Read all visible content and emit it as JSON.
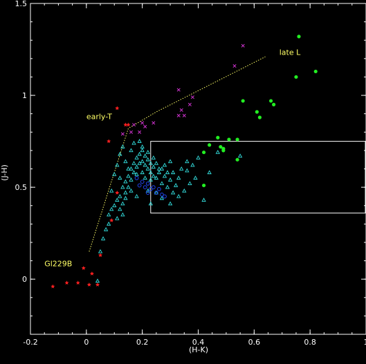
{
  "chart_data": {
    "type": "scatter",
    "title": "",
    "xlabel": "(H-K)",
    "ylabel": "(J-H)",
    "xlim": [
      -0.2,
      1.0
    ],
    "ylim": [
      -0.3,
      1.5
    ],
    "xticks": [
      -0.2,
      0,
      0.2,
      0.4,
      0.6,
      0.8,
      1
    ],
    "xtick_labels": [
      "-0.2",
      "0",
      "0.2",
      "0.4",
      "0.6",
      "0.8",
      "1"
    ],
    "yticks": [
      0,
      0.5,
      1,
      1.5
    ],
    "ytick_labels": [
      "0",
      "0.5",
      "1",
      "1.5"
    ],
    "grid": false,
    "legend": "none",
    "colors": {
      "background": "#000000",
      "axes": "#ffffff",
      "annotation": "#ffff66",
      "track": "#ffff66",
      "box": "#ffffff"
    },
    "annotations": [
      {
        "text": "Gl229B",
        "x": -0.15,
        "y": 0.07
      },
      {
        "text": "early-T",
        "x": 0.0,
        "y": 0.87
      },
      {
        "text": "late L",
        "x": 0.69,
        "y": 1.22
      }
    ],
    "tracks": [
      {
        "name": "",
        "style": "dotted",
        "color": "#ffff66",
        "points": [
          [
            0.01,
            0.15
          ],
          [
            0.15,
            0.82
          ],
          [
            0.25,
            0.91
          ],
          [
            0.64,
            1.21
          ]
        ]
      }
    ],
    "boxes": [
      {
        "color": "#ffffff",
        "x0": 0.23,
        "x1": 1.0,
        "y0": 0.36,
        "y1": 0.75
      }
    ],
    "series": [
      {
        "marker": "star",
        "color": "#ff2020",
        "points": [
          [
            -0.12,
            -0.04
          ],
          [
            -0.07,
            -0.02
          ],
          [
            -0.03,
            -0.02
          ],
          [
            0.01,
            -0.03
          ],
          [
            0.04,
            -0.03
          ],
          [
            0.02,
            0.03
          ],
          [
            -0.01,
            0.06
          ],
          [
            0.05,
            0.13
          ],
          [
            0.09,
            0.32
          ],
          [
            0.11,
            0.47
          ],
          [
            0.08,
            0.75
          ],
          [
            0.14,
            0.84
          ],
          [
            0.11,
            0.93
          ],
          [
            0.15,
            0.84
          ]
        ]
      },
      {
        "marker": "triangle",
        "color": "#33dddd",
        "points": [
          [
            0.04,
            -0.01
          ],
          [
            0.05,
            0.15
          ],
          [
            0.06,
            0.22
          ],
          [
            0.07,
            0.27
          ],
          [
            0.08,
            0.3
          ],
          [
            0.08,
            0.35
          ],
          [
            0.09,
            0.38
          ],
          [
            0.1,
            0.4
          ],
          [
            0.11,
            0.33
          ],
          [
            0.12,
            0.38
          ],
          [
            0.12,
            0.45
          ],
          [
            0.13,
            0.41
          ],
          [
            0.13,
            0.5
          ],
          [
            0.14,
            0.47
          ],
          [
            0.14,
            0.53
          ],
          [
            0.15,
            0.5
          ],
          [
            0.15,
            0.56
          ],
          [
            0.16,
            0.54
          ],
          [
            0.16,
            0.6
          ],
          [
            0.17,
            0.58
          ],
          [
            0.17,
            0.63
          ],
          [
            0.18,
            0.61
          ],
          [
            0.18,
            0.66
          ],
          [
            0.19,
            0.63
          ],
          [
            0.19,
            0.68
          ],
          [
            0.2,
            0.64
          ],
          [
            0.2,
            0.7
          ],
          [
            0.21,
            0.62
          ],
          [
            0.21,
            0.67
          ],
          [
            0.22,
            0.6
          ],
          [
            0.22,
            0.65
          ],
          [
            0.23,
            0.58
          ],
          [
            0.23,
            0.63
          ],
          [
            0.24,
            0.56
          ],
          [
            0.24,
            0.61
          ],
          [
            0.25,
            0.55
          ],
          [
            0.26,
            0.58
          ],
          [
            0.27,
            0.52
          ],
          [
            0.28,
            0.56
          ],
          [
            0.29,
            0.5
          ],
          [
            0.3,
            0.54
          ],
          [
            0.31,
            0.47
          ],
          [
            0.32,
            0.51
          ],
          [
            0.33,
            0.45
          ],
          [
            0.11,
            0.62
          ],
          [
            0.12,
            0.68
          ],
          [
            0.13,
            0.72
          ],
          [
            0.14,
            0.64
          ],
          [
            0.16,
            0.7
          ],
          [
            0.17,
            0.74
          ],
          [
            0.19,
            0.75
          ],
          [
            0.2,
            0.72
          ],
          [
            0.22,
            0.69
          ],
          [
            0.24,
            0.66
          ],
          [
            0.25,
            0.63
          ],
          [
            0.27,
            0.6
          ],
          [
            0.28,
            0.62
          ],
          [
            0.3,
            0.64
          ],
          [
            0.31,
            0.58
          ],
          [
            0.33,
            0.55
          ],
          [
            0.36,
            0.59
          ],
          [
            0.38,
            0.62
          ],
          [
            0.4,
            0.66
          ],
          [
            0.42,
            0.43
          ],
          [
            0.44,
            0.58
          ],
          [
            0.47,
            0.69
          ],
          [
            0.55,
            0.67
          ],
          [
            0.1,
            0.57
          ],
          [
            0.12,
            0.55
          ],
          [
            0.15,
            0.6
          ],
          [
            0.18,
            0.57
          ],
          [
            0.2,
            0.58
          ],
          [
            0.21,
            0.55
          ],
          [
            0.23,
            0.54
          ],
          [
            0.26,
            0.6
          ],
          [
            0.29,
            0.58
          ],
          [
            0.35,
            0.48
          ],
          [
            0.37,
            0.52
          ],
          [
            0.09,
            0.48
          ],
          [
            0.11,
            0.43
          ],
          [
            0.13,
            0.35
          ],
          [
            0.14,
            0.44
          ],
          [
            0.16,
            0.48
          ],
          [
            0.18,
            0.45
          ],
          [
            0.22,
            0.48
          ],
          [
            0.25,
            0.47
          ],
          [
            0.27,
            0.44
          ],
          [
            0.3,
            0.41
          ],
          [
            0.23,
            0.41
          ],
          [
            0.34,
            0.6
          ],
          [
            0.36,
            0.64
          ],
          [
            0.39,
            0.55
          ]
        ]
      },
      {
        "marker": "circle",
        "color": "#2244ee",
        "points": [
          [
            0.18,
            0.55
          ],
          [
            0.19,
            0.51
          ],
          [
            0.2,
            0.53
          ],
          [
            0.21,
            0.5
          ],
          [
            0.22,
            0.52
          ],
          [
            0.23,
            0.49
          ],
          [
            0.24,
            0.5
          ],
          [
            0.25,
            0.47
          ],
          [
            0.26,
            0.49
          ],
          [
            0.27,
            0.46
          ],
          [
            0.28,
            0.45
          ],
          [
            0.22,
            0.47
          ]
        ]
      },
      {
        "marker": "cross",
        "color": "#cc33cc",
        "points": [
          [
            0.13,
            0.79
          ],
          [
            0.16,
            0.8
          ],
          [
            0.17,
            0.84
          ],
          [
            0.19,
            0.8
          ],
          [
            0.2,
            0.85
          ],
          [
            0.21,
            0.83
          ],
          [
            0.24,
            0.85
          ],
          [
            0.33,
            0.89
          ],
          [
            0.34,
            0.92
          ],
          [
            0.35,
            0.89
          ],
          [
            0.37,
            0.95
          ],
          [
            0.38,
            0.99
          ],
          [
            0.33,
            1.03
          ],
          [
            0.53,
            1.16
          ],
          [
            0.56,
            1.27
          ]
        ]
      },
      {
        "marker": "dot",
        "color": "#22ee22",
        "points": [
          [
            0.42,
            0.51
          ],
          [
            0.42,
            0.69
          ],
          [
            0.44,
            0.73
          ],
          [
            0.47,
            0.77
          ],
          [
            0.48,
            0.72
          ],
          [
            0.49,
            0.71
          ],
          [
            0.49,
            0.7
          ],
          [
            0.51,
            0.76
          ],
          [
            0.54,
            0.65
          ],
          [
            0.54,
            0.76
          ],
          [
            0.56,
            0.97
          ],
          [
            0.61,
            0.91
          ],
          [
            0.62,
            0.88
          ],
          [
            0.66,
            0.97
          ],
          [
            0.67,
            0.95
          ],
          [
            0.75,
            1.1
          ],
          [
            0.76,
            1.32
          ],
          [
            0.82,
            1.13
          ]
        ]
      }
    ]
  }
}
